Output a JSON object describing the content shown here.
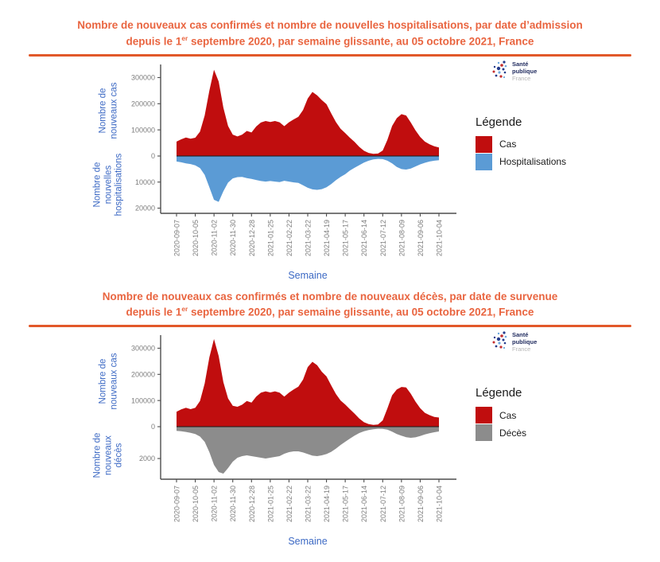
{
  "logo": {
    "line1": "Santé",
    "line2": "publique",
    "line3": "France"
  },
  "colors": {
    "title_orange": "#e96540",
    "rule_orange": "#e2582a",
    "cases_red": "#c00d0e",
    "hospital_blue": "#5b9bd5",
    "deaths_gray": "#8c8c8c",
    "axis_label_blue": "#3c69c4",
    "tick_gray": "#7d7d7d",
    "axis_line": "#4d4d4d"
  },
  "charts": [
    {
      "title_line1": "Nombre de nouveaux cas confirmés et nombre de nouvelles hospitalisations, par date d’admission",
      "title_line2_pre": "depuis le 1",
      "title_line2_sup": "er",
      "title_line2_post": " septembre 2020, par semaine glissante, au 05 octobre 2021, France",
      "y_label_top_lines": [
        "Nombre de",
        "nouveaux cas"
      ],
      "y_label_bottom_lines": [
        "Nombre de",
        "nouvelles",
        "hospitalisations"
      ],
      "legend": {
        "title": "Légende",
        "items": [
          {
            "label": "Cas",
            "color": "#c00d0e"
          },
          {
            "label": "Hospitalisations",
            "color": "#5b9bd5"
          }
        ]
      }
    },
    {
      "title_line1": "Nombre de nouveaux cas confirmés et nombre de nouveaux décès, par date de survenue",
      "title_line2_pre": "depuis le 1",
      "title_line2_sup": "er",
      "title_line2_post": " septembre 2020, par semaine glissante, au 05 octobre 2021, France",
      "y_label_top_lines": [
        "Nombre de",
        "nouveaux cas"
      ],
      "y_label_bottom_lines": [
        "Nombre de",
        "nouveaux",
        "décès"
      ],
      "legend": {
        "title": "Légende",
        "items": [
          {
            "label": "Cas",
            "color": "#c00d0e"
          },
          {
            "label": "Décès",
            "color": "#8c8c8c"
          }
        ]
      }
    }
  ],
  "chart_data": [
    {
      "type": "area",
      "orientation": "diverging-mirror",
      "title": "Nombre de nouveaux cas confirmés et nombre de nouvelles hospitalisations, par date d’admission depuis le 1er septembre 2020, par semaine glissante, au 05 octobre 2021, France",
      "xlabel": "Semaine",
      "x": [
        "2020-09-07",
        "2020-09-14",
        "2020-09-21",
        "2020-09-28",
        "2020-10-05",
        "2020-10-12",
        "2020-10-19",
        "2020-10-26",
        "2020-11-02",
        "2020-11-09",
        "2020-11-16",
        "2020-11-23",
        "2020-11-30",
        "2020-12-07",
        "2020-12-14",
        "2020-12-21",
        "2020-12-28",
        "2021-01-04",
        "2021-01-11",
        "2021-01-18",
        "2021-01-25",
        "2021-02-01",
        "2021-02-08",
        "2021-02-15",
        "2021-02-22",
        "2021-03-01",
        "2021-03-08",
        "2021-03-15",
        "2021-03-22",
        "2021-03-29",
        "2021-04-05",
        "2021-04-12",
        "2021-04-19",
        "2021-04-26",
        "2021-05-03",
        "2021-05-10",
        "2021-05-17",
        "2021-05-24",
        "2021-05-31",
        "2021-06-07",
        "2021-06-14",
        "2021-06-21",
        "2021-06-28",
        "2021-07-05",
        "2021-07-12",
        "2021-07-19",
        "2021-07-26",
        "2021-08-02",
        "2021-08-09",
        "2021-08-16",
        "2021-08-23",
        "2021-08-30",
        "2021-09-06",
        "2021-09-13",
        "2021-09-20",
        "2021-09-27",
        "2021-10-04"
      ],
      "x_ticks": [
        "2020-09-07",
        "2020-10-05",
        "2020-11-02",
        "2020-11-30",
        "2020-12-28",
        "2021-01-25",
        "2021-02-22",
        "2021-03-22",
        "2021-04-19",
        "2021-05-17",
        "2021-06-14",
        "2021-07-12",
        "2021-08-09",
        "2021-09-06",
        "2021-10-04"
      ],
      "y_up": {
        "label": "Nombre de nouveaux cas",
        "ticks": [
          0,
          100000,
          200000,
          300000
        ],
        "max": 350000
      },
      "y_down": {
        "label": "Nombre de nouvelles hospitalisations",
        "ticks": [
          10000,
          20000
        ],
        "max": 22000,
        "inverted": true
      },
      "series": [
        {
          "name": "Cas",
          "color": "#c00d0e",
          "direction": "up",
          "values": [
            55000,
            64000,
            71000,
            66000,
            70000,
            93000,
            155000,
            250000,
            330000,
            285000,
            185000,
            115000,
            82000,
            75000,
            82000,
            96000,
            90000,
            113000,
            128000,
            134000,
            130000,
            134000,
            129000,
            114000,
            129000,
            140000,
            150000,
            176000,
            220000,
            245000,
            232000,
            214000,
            198000,
            163000,
            130000,
            104000,
            88000,
            70000,
            54000,
            35000,
            20000,
            12000,
            8500,
            9500,
            21000,
            62000,
            115000,
            145000,
            160000,
            155000,
            128000,
            98000,
            73000,
            55000,
            45000,
            37000,
            33000
          ]
        },
        {
          "name": "Hospitalisations",
          "color": "#5b9bd5",
          "direction": "down",
          "values": [
            2100,
            2400,
            2800,
            3100,
            3600,
            4600,
            7200,
            12000,
            16800,
            17600,
            13500,
            10200,
            8600,
            8100,
            8000,
            8500,
            8800,
            9200,
            9600,
            9800,
            9600,
            9800,
            10000,
            9500,
            9800,
            10100,
            10300,
            11200,
            12200,
            12800,
            13000,
            12700,
            12000,
            10800,
            9300,
            8000,
            7000,
            5600,
            4500,
            3500,
            2500,
            1800,
            1300,
            1100,
            1200,
            1800,
            2800,
            4200,
            5000,
            5200,
            4800,
            4000,
            3200,
            2600,
            2100,
            1800,
            1600
          ]
        }
      ]
    },
    {
      "type": "area",
      "orientation": "diverging-mirror",
      "title": "Nombre de nouveaux cas confirmés et nombre de nouveaux décès, par date de survenue depuis le 1er septembre 2020, par semaine glissante, au 05 octobre 2021, France",
      "xlabel": "Semaine",
      "x": [
        "2020-09-07",
        "2020-09-14",
        "2020-09-21",
        "2020-09-28",
        "2020-10-05",
        "2020-10-12",
        "2020-10-19",
        "2020-10-26",
        "2020-11-02",
        "2020-11-09",
        "2020-11-16",
        "2020-11-23",
        "2020-11-30",
        "2020-12-07",
        "2020-12-14",
        "2020-12-21",
        "2020-12-28",
        "2021-01-04",
        "2021-01-11",
        "2021-01-18",
        "2021-01-25",
        "2021-02-01",
        "2021-02-08",
        "2021-02-15",
        "2021-02-22",
        "2021-03-01",
        "2021-03-08",
        "2021-03-15",
        "2021-03-22",
        "2021-03-29",
        "2021-04-05",
        "2021-04-12",
        "2021-04-19",
        "2021-04-26",
        "2021-05-03",
        "2021-05-10",
        "2021-05-17",
        "2021-05-24",
        "2021-05-31",
        "2021-06-07",
        "2021-06-14",
        "2021-06-21",
        "2021-06-28",
        "2021-07-05",
        "2021-07-12",
        "2021-07-19",
        "2021-07-26",
        "2021-08-02",
        "2021-08-09",
        "2021-08-16",
        "2021-08-23",
        "2021-08-30",
        "2021-09-06",
        "2021-09-13",
        "2021-09-20",
        "2021-09-27",
        "2021-10-04"
      ],
      "x_ticks": [
        "2020-09-07",
        "2020-10-05",
        "2020-11-02",
        "2020-11-30",
        "2020-12-28",
        "2021-01-25",
        "2021-02-22",
        "2021-03-22",
        "2021-04-19",
        "2021-05-17",
        "2021-06-14",
        "2021-07-12",
        "2021-08-09",
        "2021-09-06",
        "2021-10-04"
      ],
      "y_up": {
        "label": "Nombre de nouveaux cas",
        "ticks": [
          0,
          100000,
          200000,
          300000
        ],
        "max": 350000
      },
      "y_down": {
        "label": "Nombre de nouveaux décès",
        "ticks": [
          2000
        ],
        "max": 3300,
        "inverted": true
      },
      "series": [
        {
          "name": "Cas",
          "color": "#c00d0e",
          "direction": "up",
          "values": [
            57000,
            66000,
            72000,
            67000,
            72000,
            98000,
            165000,
            265000,
            335000,
            270000,
            170000,
            108000,
            80000,
            76000,
            84000,
            98000,
            92000,
            115000,
            130000,
            135000,
            131000,
            135000,
            130000,
            115000,
            130000,
            142000,
            153000,
            180000,
            228000,
            248000,
            235000,
            210000,
            192000,
            158000,
            125000,
            100000,
            85000,
            67000,
            50000,
            31000,
            17000,
            10000,
            7000,
            8500,
            24000,
            70000,
            120000,
            142000,
            152000,
            150000,
            126000,
            96000,
            71000,
            53000,
            44000,
            37000,
            35000
          ]
        },
        {
          "name": "Décès",
          "color": "#8c8c8c",
          "direction": "down",
          "values": [
            260,
            290,
            330,
            390,
            460,
            620,
            950,
            1600,
            2400,
            2850,
            2950,
            2600,
            2200,
            1950,
            1850,
            1800,
            1850,
            1900,
            1950,
            2000,
            1950,
            1900,
            1850,
            1700,
            1600,
            1550,
            1550,
            1620,
            1720,
            1820,
            1850,
            1800,
            1720,
            1580,
            1380,
            1150,
            950,
            750,
            560,
            400,
            290,
            210,
            160,
            130,
            140,
            190,
            310,
            460,
            570,
            660,
            700,
            670,
            590,
            490,
            410,
            350,
            300
          ]
        }
      ]
    }
  ]
}
